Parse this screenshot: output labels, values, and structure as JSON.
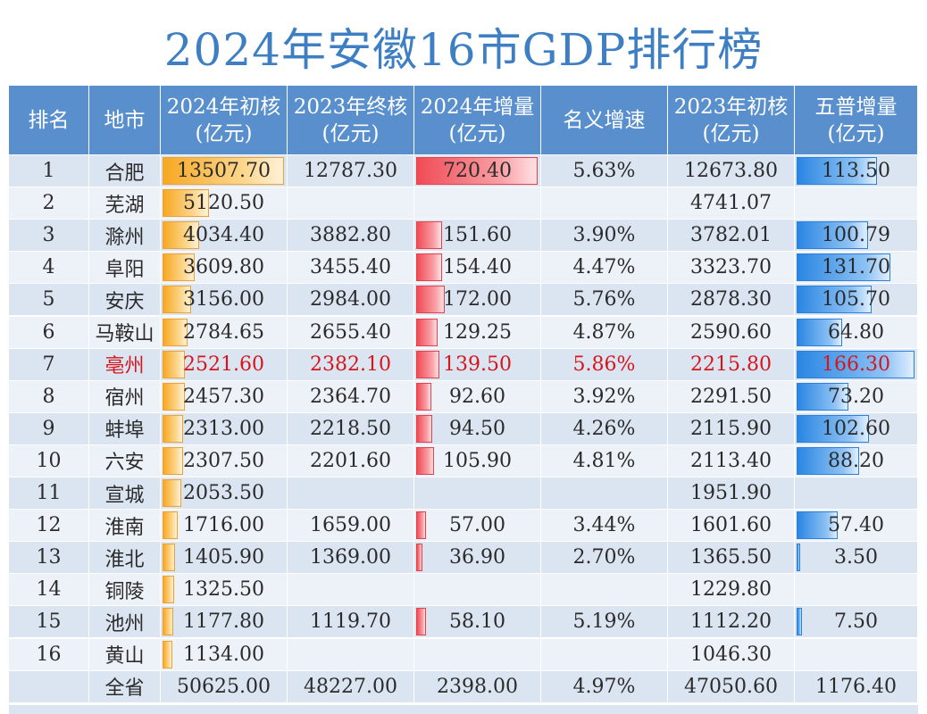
{
  "title": "2024年安徽16市GDP排行榜",
  "colors": {
    "header_bg": "#5a8fcd",
    "row_odd": "#dbe5f1",
    "row_even": "#edf2f8",
    "bar_gdp_2024": "#f7a823",
    "bar_increase": "#f04b55",
    "bar_census": "#2a86e2",
    "highlight_text": "#d6161d",
    "title_text": "#3e7fc4"
  },
  "chart_data": {
    "type": "table",
    "title": "2024年安徽16市GDP排行榜",
    "columns": [
      "排名",
      "地市",
      "2024年初核\n(亿元)",
      "2023年终核\n(亿元)",
      "2024年增量\n(亿元)",
      "名义增速",
      "2023年初核\n(亿元)",
      "五普增量\n(亿元)"
    ],
    "bar_columns": [
      2,
      4,
      7
    ],
    "highlight_row": 6,
    "rows": [
      [
        "1",
        "合肥",
        "13507.70",
        "12787.30",
        "720.40",
        "5.63%",
        "12673.80",
        "113.50"
      ],
      [
        "2",
        "芜湖",
        "5120.50",
        "",
        "",
        "",
        "4741.07",
        ""
      ],
      [
        "3",
        "滁州",
        "4034.40",
        "3882.80",
        "151.60",
        "3.90%",
        "3782.01",
        "100.79"
      ],
      [
        "4",
        "阜阳",
        "3609.80",
        "3455.40",
        "154.40",
        "4.47%",
        "3323.70",
        "131.70"
      ],
      [
        "5",
        "安庆",
        "3156.00",
        "2984.00",
        "172.00",
        "5.76%",
        "2878.30",
        "105.70"
      ],
      [
        "6",
        "马鞍山",
        "2784.65",
        "2655.40",
        "129.25",
        "4.87%",
        "2590.60",
        "64.80"
      ],
      [
        "7",
        "亳州",
        "2521.60",
        "2382.10",
        "139.50",
        "5.86%",
        "2215.80",
        "166.30"
      ],
      [
        "8",
        "宿州",
        "2457.30",
        "2364.70",
        "92.60",
        "3.92%",
        "2291.50",
        "73.20"
      ],
      [
        "9",
        "蚌埠",
        "2313.00",
        "2218.50",
        "94.50",
        "4.26%",
        "2115.90",
        "102.60"
      ],
      [
        "10",
        "六安",
        "2307.50",
        "2201.60",
        "105.90",
        "4.81%",
        "2113.40",
        "88.20"
      ],
      [
        "11",
        "宣城",
        "2053.50",
        "",
        "",
        "",
        "1951.90",
        ""
      ],
      [
        "12",
        "淮南",
        "1716.00",
        "1659.00",
        "57.00",
        "3.44%",
        "1601.60",
        "57.40"
      ],
      [
        "13",
        "淮北",
        "1405.90",
        "1369.00",
        "36.90",
        "2.70%",
        "1365.50",
        "3.50"
      ],
      [
        "14",
        "铜陵",
        "1325.50",
        "",
        "",
        "",
        "1229.80",
        ""
      ],
      [
        "15",
        "池州",
        "1177.80",
        "1119.70",
        "58.10",
        "5.19%",
        "1112.20",
        "7.50"
      ],
      [
        "16",
        "黄山",
        "1134.00",
        "",
        "",
        "",
        "1046.30",
        ""
      ]
    ],
    "total_row": [
      "",
      "全省",
      "50625.00",
      "48227.00",
      "2398.00",
      "4.97%",
      "47050.60",
      "1176.40"
    ]
  }
}
